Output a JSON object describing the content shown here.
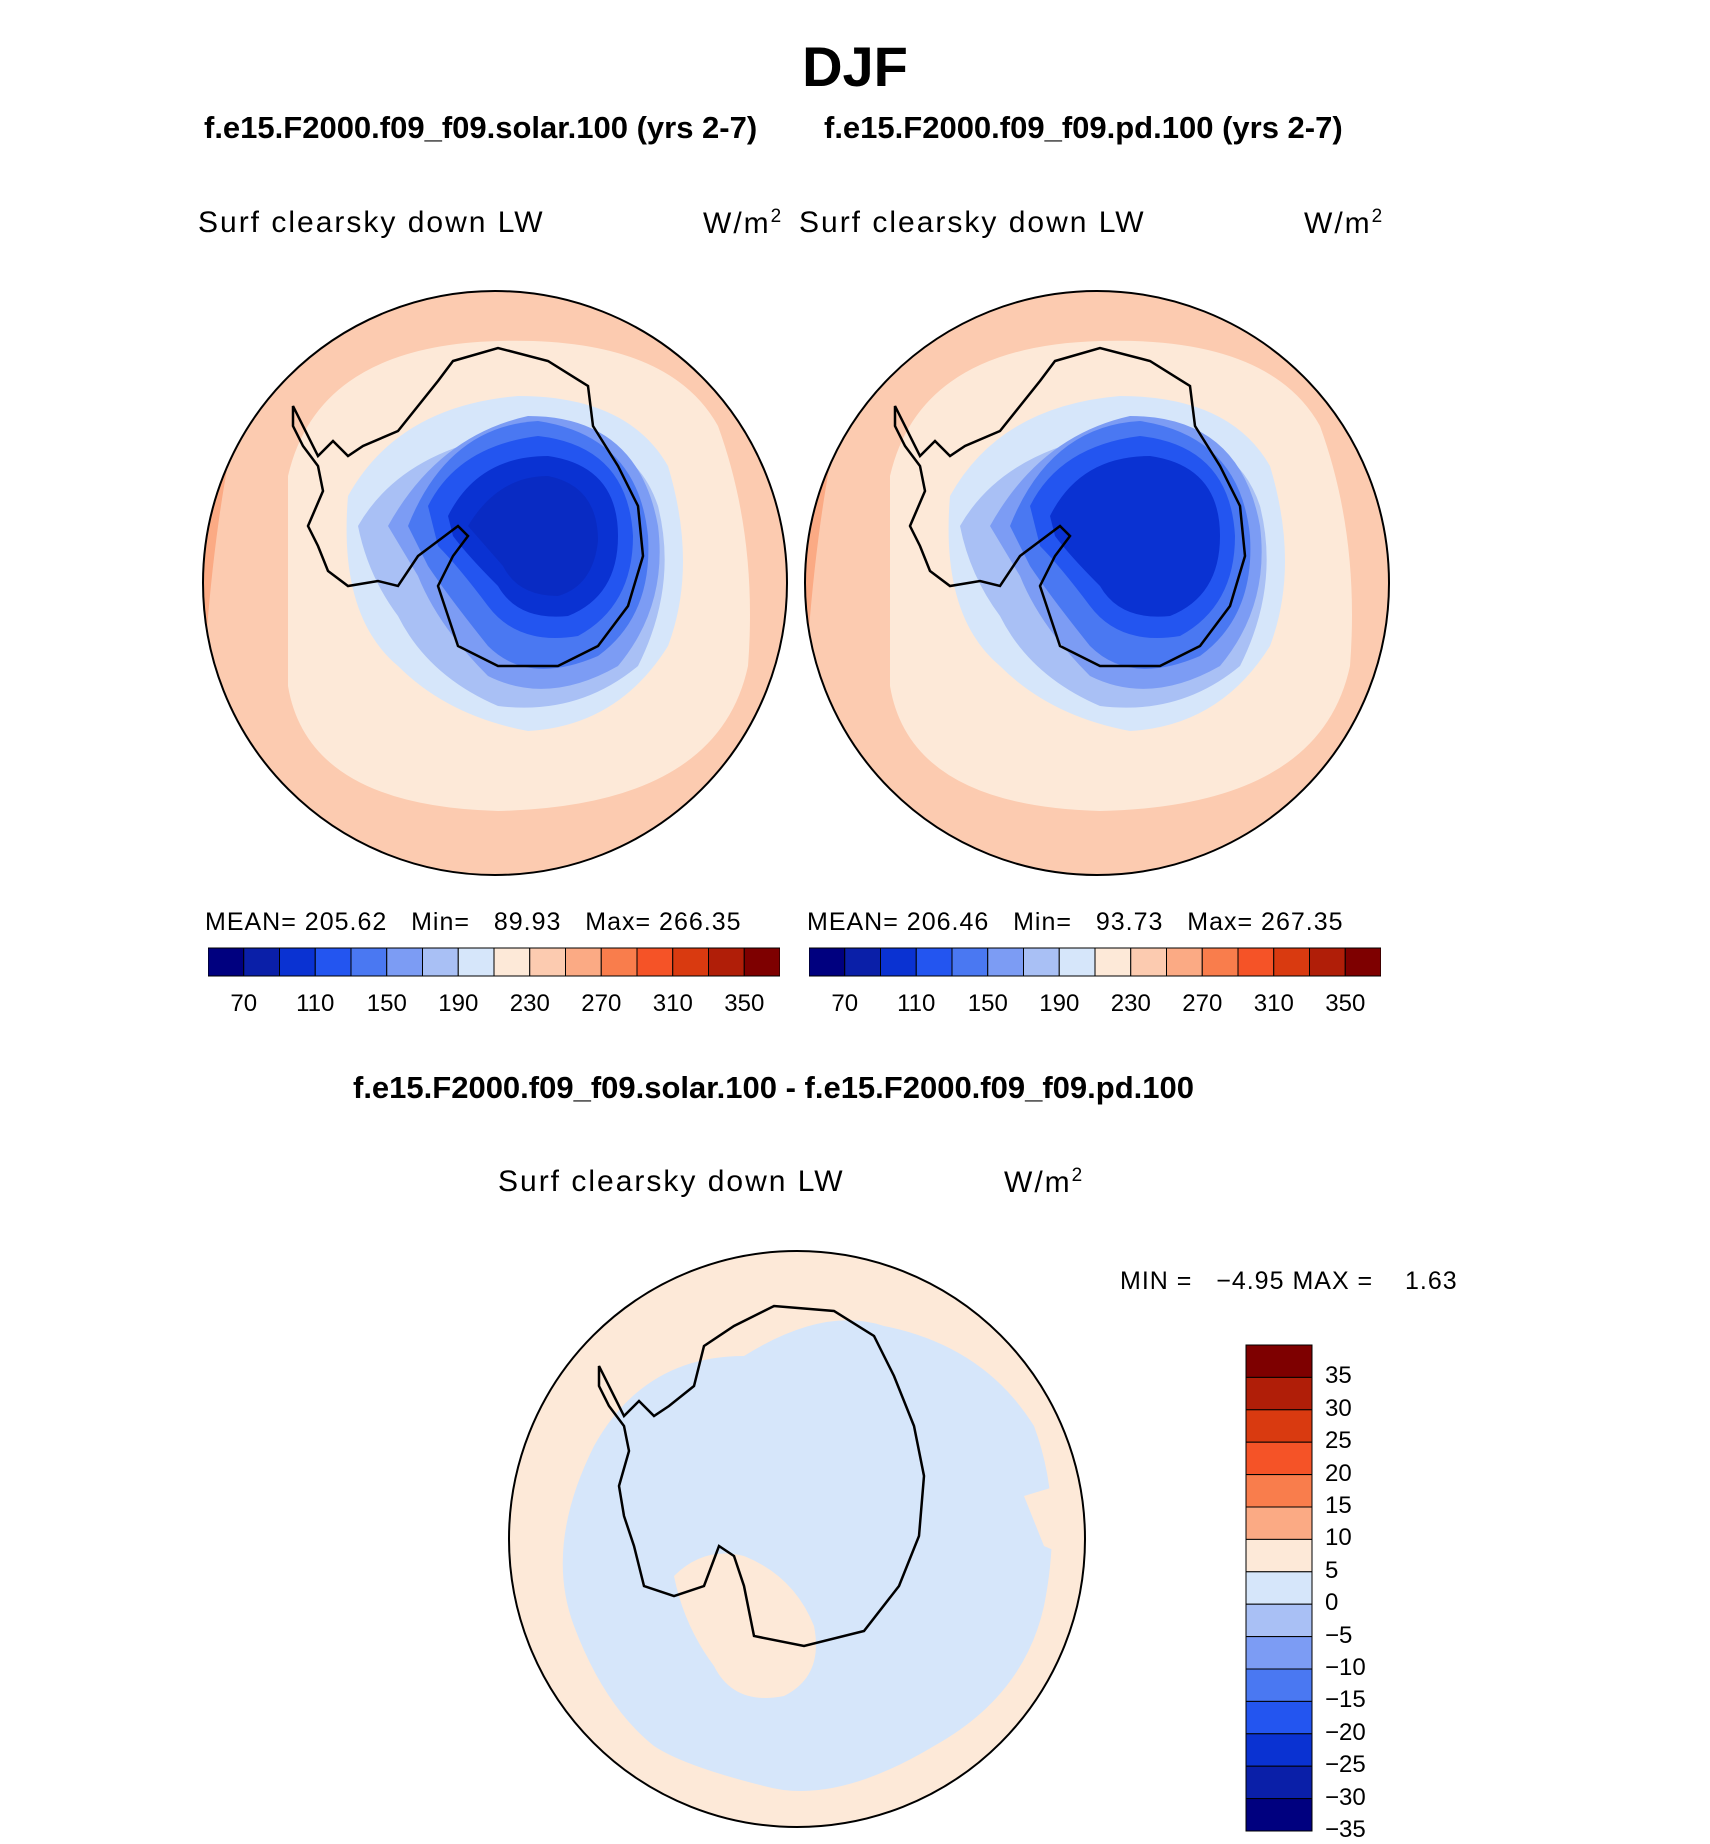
{
  "figure": {
    "title": "DJF",
    "case1_title": "f.e15.F2000.f09_f09.solar.100 (yrs 2-7)",
    "case2_title": "f.e15.F2000.f09_f09.pd.100 (yrs 2-7)",
    "diff_title": "f.e15.F2000.f09_f09.solar.100 - f.e15.F2000.f09_f09.pd.100"
  },
  "panels": [
    {
      "variable": "Surf clearsky down LW",
      "units": "W/m",
      "units_sup": "2",
      "mean_label": "MEAN=",
      "mean": "205.62",
      "min_label": "Min=",
      "min": "89.93",
      "max_label": "Max=",
      "max": "266.35"
    },
    {
      "variable": "Surf clearsky down LW",
      "units": "W/m",
      "units_sup": "2",
      "mean_label": "MEAN=",
      "mean": "206.46",
      "min_label": "Min=",
      "min": "93.73",
      "max_label": "Max=",
      "max": "267.35"
    }
  ],
  "diff_panel": {
    "variable": "Surf clearsky down LW",
    "units": "W/m",
    "units_sup": "2",
    "min_label": "MIN =",
    "min": "−4.95",
    "max_label": "MAX =",
    "max": "1.63"
  },
  "colorbar_abs": {
    "colors": [
      "#00007f",
      "#0a1fa8",
      "#0a32d2",
      "#2355f0",
      "#4a78f2",
      "#7c9cf4",
      "#a9c0f5",
      "#d6e6fa",
      "#fde9d8",
      "#fccbb0",
      "#fbaa84",
      "#f97d4c",
      "#f55327",
      "#d93a10",
      "#b01e08",
      "#7e0000"
    ],
    "labels": [
      "70",
      "110",
      "150",
      "190",
      "230",
      "270",
      "310",
      "350"
    ]
  },
  "colorbar_diff": {
    "colors": [
      "#7e0000",
      "#b01e08",
      "#d93a10",
      "#f55327",
      "#f97d4c",
      "#fbaa84",
      "#fde9d8",
      "#d6e6fa",
      "#a9c0f5",
      "#7c9cf4",
      "#4a78f2",
      "#2355f0",
      "#0a32d2",
      "#0a1fa8",
      "#00007f"
    ],
    "labels": [
      "35",
      "30",
      "25",
      "20",
      "15",
      "10",
      "5",
      "0",
      "−5",
      "−10",
      "−15",
      "−20",
      "−25",
      "−30",
      "−35"
    ]
  }
}
